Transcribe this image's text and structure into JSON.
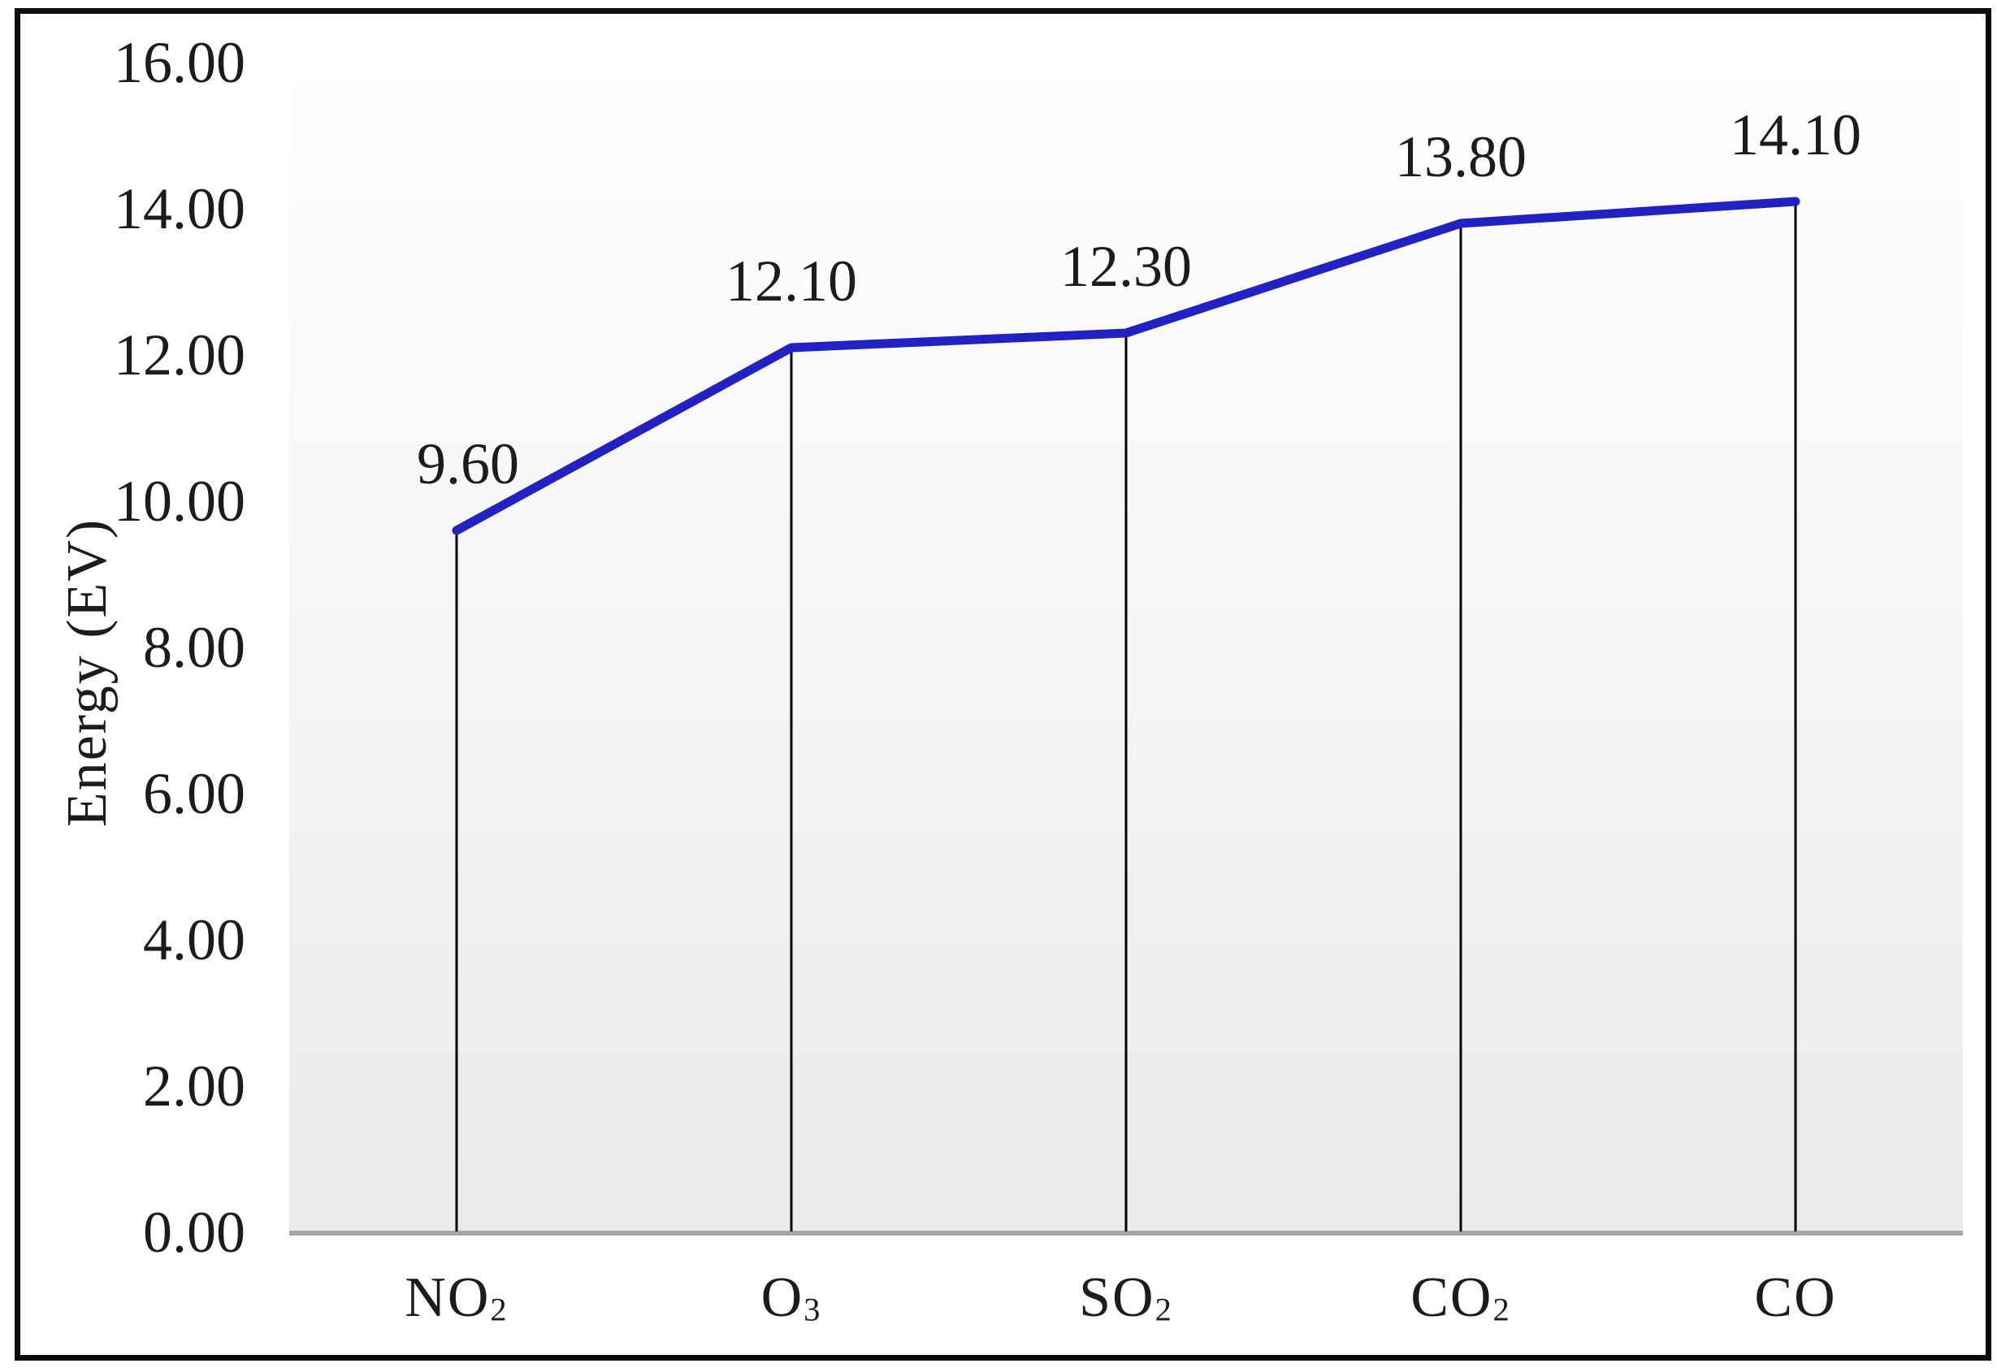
{
  "chart_data": {
    "type": "line",
    "title": "",
    "xlabel": "",
    "ylabel": "Energy (EV)",
    "categories": [
      "NO₂",
      "O₃",
      "SO₂",
      "CO₂",
      "CO"
    ],
    "series": [
      {
        "name": "Energy (EV)",
        "values": [
          9.6,
          12.1,
          12.3,
          13.8,
          14.1
        ]
      }
    ],
    "value_labels": [
      "9.60",
      "12.10",
      "12.30",
      "13.80",
      "14.10"
    ],
    "ytick_labels": [
      "16.00",
      "14.00",
      "12.00",
      "10.00",
      "8.00",
      "6.00",
      "4.00",
      "2.00",
      "0.00"
    ],
    "ylim": [
      0,
      16
    ],
    "ytick_step": 2,
    "grid": "off",
    "legend": "none",
    "drop_lines_to_axis": true,
    "colors": {
      "line": "#2222c3",
      "drop_line": "#000000",
      "axis_line": "#a6a6a6",
      "text": "#1c1c1c",
      "plot_bg_top": "#ffffff",
      "plot_bg_bottom": "#eaeaec",
      "frame_border": "#0b0b0b"
    }
  }
}
